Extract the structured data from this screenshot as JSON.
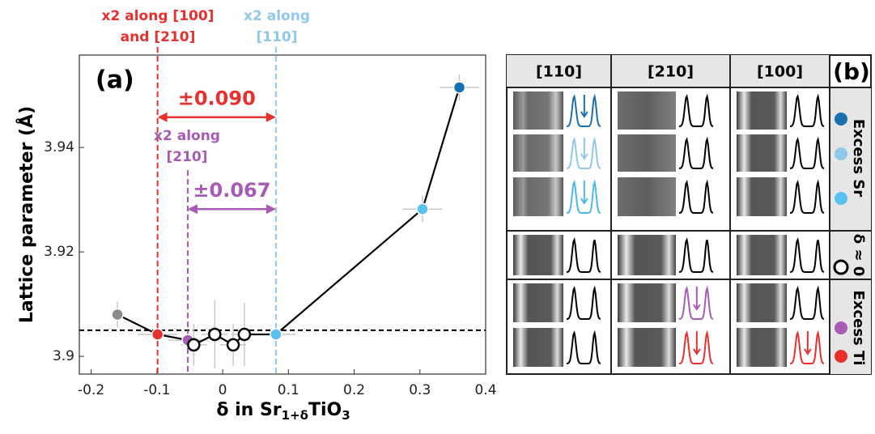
{
  "chart_data": {
    "type": "scatter",
    "title": "(a)",
    "xlabel": [
      "δ in Sr",
      "1+δ",
      "TiO",
      "3"
    ],
    "ylabel": "Lattice parameter (Å)",
    "x": [
      -0.16,
      -0.099,
      -0.053,
      -0.044,
      -0.012,
      0.016,
      0.033,
      0.081,
      0.304,
      0.36
    ],
    "values": [
      3.908,
      3.9042,
      3.9031,
      3.9022,
      3.9042,
      3.9022,
      3.9042,
      3.9042,
      3.9282,
      3.9515
    ],
    "xerr": [
      0.01,
      0.03,
      0.03,
      0.02,
      0.02,
      0.02,
      0.02,
      0.03,
      0.03,
      0.03
    ],
    "yerr": [
      0.0025,
      0.0012,
      0.0012,
      0.004,
      0.0065,
      0.004,
      0.006,
      0.0012,
      0.0025,
      0.0025
    ],
    "colors": [
      "#8c8c8c",
      "#e8302f",
      "#a85bb5",
      "#ffffff",
      "#ffffff",
      "#ffffff",
      "#ffffff",
      "#5bc1ee",
      "#5bc1ee",
      "#1a6fb0"
    ],
    "edgecolors": [
      "#ffffff",
      "#ffffff",
      "#ffffff",
      "#000000",
      "#000000",
      "#000000",
      "#000000",
      "#ffffff",
      "#ffffff",
      "#ffffff"
    ],
    "line_color": "#000000",
    "xlim": [
      -0.218,
      0.4
    ],
    "ylim": [
      3.8966,
      3.9577
    ],
    "xticks": [
      -0.2,
      -0.1,
      0,
      0.1,
      0.2,
      0.3,
      0.4
    ],
    "yticks": [
      3.9,
      3.92,
      3.94
    ],
    "hline": 3.905,
    "vlines": [
      {
        "x": -0.099,
        "color": "#e8302f"
      },
      {
        "x": -0.053,
        "color": "#a85bb5"
      },
      {
        "x": 0.081,
        "color": "#8fc8ea"
      }
    ],
    "spans": [
      {
        "x0": -0.099,
        "x1": 0.081,
        "y": 3.9458,
        "label": "±0.090",
        "color": "#e8302f"
      },
      {
        "x0": -0.053,
        "x1": 0.081,
        "y": 3.9282,
        "label": "±0.067",
        "color": "#a85bb5"
      }
    ],
    "annotations": [
      {
        "text": [
          "x2 along [100]",
          "and [210]"
        ],
        "color": "#e8302f"
      },
      {
        "text": [
          "x2 along",
          "[110]"
        ],
        "color": "#8fc8ea"
      },
      {
        "text": [
          "x2 along",
          "[210]"
        ],
        "color": "#a85bb5"
      }
    ]
  },
  "panel_b": {
    "title": "(b)",
    "columns": [
      "[110]",
      "[210]",
      "[100]"
    ],
    "rows": [
      "Excess Sr",
      "δ ≈ 0",
      "Excess Ti"
    ]
  }
}
